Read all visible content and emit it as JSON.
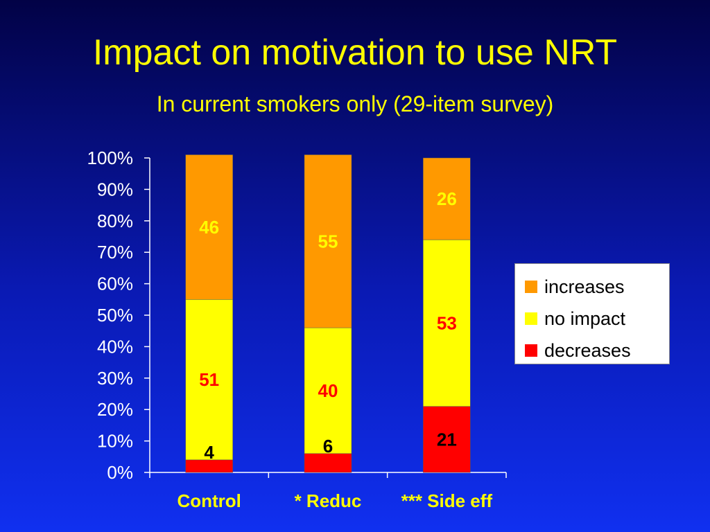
{
  "title": "Impact on motivation to use NRT",
  "subtitle": "In current smokers only (29-item survey)",
  "chart_data": {
    "type": "bar",
    "stacked": true,
    "categories": [
      "Control",
      "* Reduc",
      "*** Side eff"
    ],
    "series": [
      {
        "name": "decreases",
        "color": "#ff0000",
        "values": [
          4,
          6,
          21
        ],
        "label_color": "#000000"
      },
      {
        "name": "no impact",
        "color": "#ffff00",
        "values": [
          51,
          40,
          53
        ],
        "label_color": "#ff0000"
      },
      {
        "name": "increases",
        "color": "#ff9900",
        "values": [
          46,
          55,
          26
        ],
        "label_color": "#ffff00"
      }
    ],
    "ylim": [
      0,
      100
    ],
    "yticks": [
      "0%",
      "10%",
      "20%",
      "30%",
      "40%",
      "50%",
      "60%",
      "70%",
      "80%",
      "90%",
      "100%"
    ],
    "legend": {
      "position": "right",
      "order": [
        "increases",
        "no impact",
        "decreases"
      ]
    },
    "grid": false,
    "axis_color": "#ffffff",
    "category_label_color": "#ffff00"
  }
}
